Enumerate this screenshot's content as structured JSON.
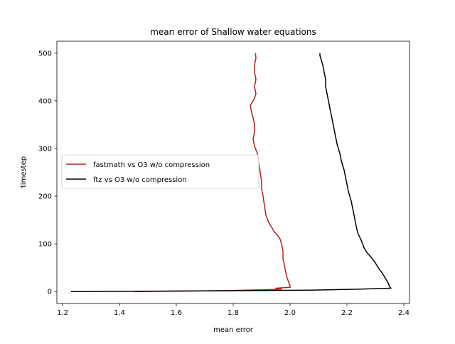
{
  "chart_data": {
    "type": "line",
    "title": "mean error of Shallow water equations",
    "xlabel": "mean error",
    "ylabel": "timestep",
    "xlim": [
      1.18,
      2.42
    ],
    "ylim": [
      -25,
      525
    ],
    "xticks": [
      1.2,
      1.4,
      1.6,
      1.8,
      2.0,
      2.2,
      2.4
    ],
    "yticks": [
      0,
      100,
      200,
      300,
      400,
      500
    ],
    "xtick_labels": [
      "1.2",
      "1.4",
      "1.6",
      "1.8",
      "2.0",
      "2.2",
      "2.4"
    ],
    "ytick_labels": [
      "0",
      "100",
      "200",
      "300",
      "400",
      "500"
    ],
    "grid": false,
    "legend_position": "center-left",
    "series": [
      {
        "name": "fastmath vs O3 w/o compression",
        "color": "#b22222",
        "points": [
          [
            1.45,
            0
          ],
          [
            1.78,
            2
          ],
          [
            1.92,
            4
          ],
          [
            1.97,
            5
          ],
          [
            1.95,
            7
          ],
          [
            2.0,
            9
          ],
          [
            2.0,
            12
          ],
          [
            1.995,
            20
          ],
          [
            1.99,
            28
          ],
          [
            1.985,
            40
          ],
          [
            1.98,
            55
          ],
          [
            1.975,
            70
          ],
          [
            1.975,
            85
          ],
          [
            1.97,
            100
          ],
          [
            1.965,
            110
          ],
          [
            1.96,
            115
          ],
          [
            1.945,
            125
          ],
          [
            1.935,
            135
          ],
          [
            1.925,
            145
          ],
          [
            1.915,
            160
          ],
          [
            1.91,
            180
          ],
          [
            1.905,
            200
          ],
          [
            1.9,
            215
          ],
          [
            1.9,
            230
          ],
          [
            1.895,
            250
          ],
          [
            1.89,
            270
          ],
          [
            1.885,
            290
          ],
          [
            1.875,
            305
          ],
          [
            1.87,
            320
          ],
          [
            1.875,
            335
          ],
          [
            1.875,
            350
          ],
          [
            1.87,
            365
          ],
          [
            1.865,
            375
          ],
          [
            1.86,
            390
          ],
          [
            1.875,
            405
          ],
          [
            1.88,
            415
          ],
          [
            1.875,
            430
          ],
          [
            1.88,
            445
          ],
          [
            1.875,
            460
          ],
          [
            1.875,
            475
          ],
          [
            1.88,
            490
          ],
          [
            1.878,
            500
          ]
        ]
      },
      {
        "name": "ftz vs O3 w/o compression",
        "color": "#000000",
        "points": [
          [
            1.23,
            0
          ],
          [
            1.6,
            1
          ],
          [
            2.07,
            3
          ],
          [
            2.24,
            5
          ],
          [
            2.355,
            7
          ],
          [
            2.35,
            10
          ],
          [
            2.345,
            18
          ],
          [
            2.335,
            28
          ],
          [
            2.325,
            38
          ],
          [
            2.31,
            50
          ],
          [
            2.3,
            60
          ],
          [
            2.285,
            72
          ],
          [
            2.27,
            82
          ],
          [
            2.26,
            92
          ],
          [
            2.255,
            100
          ],
          [
            2.25,
            108
          ],
          [
            2.24,
            120
          ],
          [
            2.235,
            130
          ],
          [
            2.23,
            145
          ],
          [
            2.225,
            160
          ],
          [
            2.22,
            175
          ],
          [
            2.215,
            190
          ],
          [
            2.205,
            210
          ],
          [
            2.2,
            225
          ],
          [
            2.195,
            240
          ],
          [
            2.19,
            255
          ],
          [
            2.18,
            275
          ],
          [
            2.175,
            290
          ],
          [
            2.165,
            310
          ],
          [
            2.16,
            325
          ],
          [
            2.155,
            340
          ],
          [
            2.15,
            355
          ],
          [
            2.145,
            370
          ],
          [
            2.14,
            385
          ],
          [
            2.135,
            400
          ],
          [
            2.13,
            415
          ],
          [
            2.125,
            430
          ],
          [
            2.125,
            445
          ],
          [
            2.12,
            460
          ],
          [
            2.115,
            475
          ],
          [
            2.11,
            485
          ],
          [
            2.105,
            495
          ],
          [
            2.105,
            500
          ]
        ]
      }
    ]
  }
}
